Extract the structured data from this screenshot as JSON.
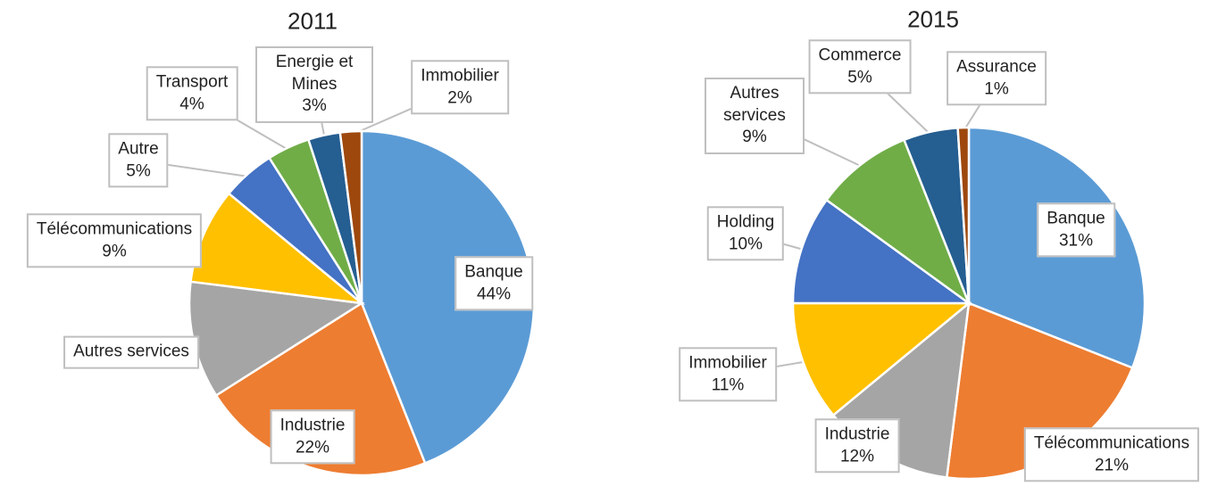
{
  "chart_data": [
    {
      "type": "pie",
      "title": "2011",
      "categories": [
        "Banque",
        "Industrie",
        "Autres services",
        "Télécommunications",
        "Autre",
        "Transport",
        "Energie et Mines",
        "Immobilier"
      ],
      "values": [
        44,
        22,
        11,
        9,
        5,
        4,
        3,
        2
      ],
      "value_labels": [
        "44%",
        "22%",
        null,
        "9%",
        "5%",
        "4%",
        "3%",
        "2%"
      ],
      "colors": [
        "#5b9bd5",
        "#ed7d31",
        "#a5a5a5",
        "#ffc000",
        "#4472c4",
        "#70ad47",
        "#255e91",
        "#9e480e"
      ]
    },
    {
      "type": "pie",
      "title": "2015",
      "categories": [
        "Banque",
        "Télécommunications",
        "Industrie",
        "Immobilier",
        "Holding",
        "Autres services",
        "Commerce",
        "Assurance"
      ],
      "values": [
        31,
        21,
        12,
        11,
        10,
        9,
        5,
        1
      ],
      "value_labels": [
        "31%",
        "21%",
        "12%",
        "11%",
        "10%",
        "9%",
        "5%",
        "1%"
      ],
      "colors": [
        "#5b9bd5",
        "#ed7d31",
        "#a5a5a5",
        "#ffc000",
        "#4472c4",
        "#70ad47",
        "#255e91",
        "#9e480e"
      ]
    }
  ]
}
